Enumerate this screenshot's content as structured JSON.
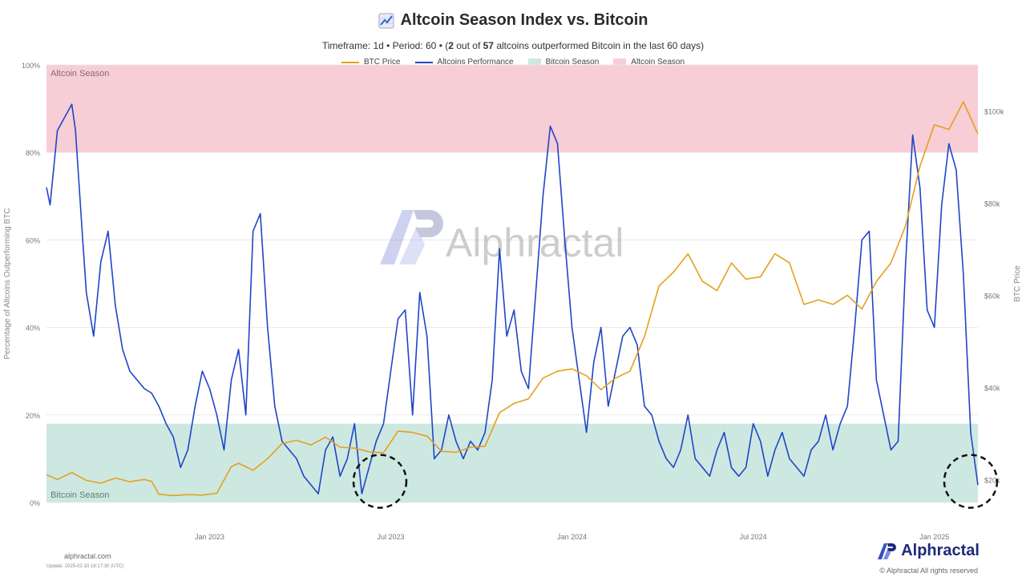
{
  "chart_data": {
    "type": "line",
    "title": "Altcoin Season Index vs. Bitcoin",
    "subtitle": {
      "prefix": "Timeframe: 1d  •  Period: 60  •  (",
      "count": "2",
      "middle": " out of ",
      "total": "57",
      "suffix": " altcoins outperformed Bitcoin in the last 60 days)"
    },
    "legend": {
      "btc_price": "BTC Price",
      "altcoins_performance": "Altcoins Performance",
      "bitcoin_season": "Bitcoin Season",
      "altcoin_season": "Altcoin Season"
    },
    "ylabel_left": "Percentage of Altcoins Outperforming BTC",
    "ylabel_right": "BTC Price",
    "left_ticks": [
      "0%",
      "20%",
      "40%",
      "60%",
      "80%",
      "100%"
    ],
    "left_tick_values": [
      0,
      20,
      40,
      60,
      80,
      100
    ],
    "right_ticks": [
      "$20k",
      "$40k",
      "$60k",
      "$80k",
      "$100k"
    ],
    "right_tick_values": [
      20000,
      40000,
      60000,
      80000,
      100000
    ],
    "ylim_left": [
      0,
      100
    ],
    "ylim_right": [
      15000,
      110000
    ],
    "x_ticks": [
      "Jan 2023",
      "Jul 2023",
      "Jan 2024",
      "Jul 2024",
      "Jan 2025"
    ],
    "x_tick_values": [
      2023.0,
      2023.5,
      2024.0,
      2024.5,
      2025.0
    ],
    "xlim": [
      2022.55,
      2025.12
    ],
    "bands": [
      {
        "name": "Altcoin Season",
        "from": 80,
        "to": 100,
        "color": "#f7cdd6"
      },
      {
        "name": "Bitcoin Season",
        "from": 0,
        "to": 18,
        "color": "#cde8e1"
      }
    ],
    "band_labels": {
      "top": "Altcoin Season",
      "bottom": "Bitcoin Season"
    },
    "series": [
      {
        "name": "Altcoins Performance",
        "axis": "left",
        "color": "#1f45c8",
        "x": [
          2022.55,
          2022.56,
          2022.58,
          2022.6,
          2022.62,
          2022.63,
          2022.65,
          2022.66,
          2022.68,
          2022.7,
          2022.72,
          2022.74,
          2022.76,
          2022.78,
          2022.8,
          2022.82,
          2022.84,
          2022.86,
          2022.88,
          2022.9,
          2022.92,
          2022.94,
          2022.96,
          2022.98,
          2023.0,
          2023.02,
          2023.04,
          2023.06,
          2023.08,
          2023.1,
          2023.12,
          2023.14,
          2023.16,
          2023.18,
          2023.2,
          2023.22,
          2023.24,
          2023.26,
          2023.28,
          2023.3,
          2023.32,
          2023.34,
          2023.36,
          2023.38,
          2023.4,
          2023.42,
          2023.44,
          2023.46,
          2023.48,
          2023.5,
          2023.52,
          2023.54,
          2023.56,
          2023.58,
          2023.6,
          2023.62,
          2023.64,
          2023.66,
          2023.68,
          2023.7,
          2023.72,
          2023.74,
          2023.76,
          2023.78,
          2023.8,
          2023.82,
          2023.84,
          2023.86,
          2023.88,
          2023.9,
          2023.92,
          2023.94,
          2023.96,
          2023.98,
          2024.0,
          2024.02,
          2024.04,
          2024.06,
          2024.08,
          2024.1,
          2024.12,
          2024.14,
          2024.16,
          2024.18,
          2024.2,
          2024.22,
          2024.24,
          2024.26,
          2024.28,
          2024.3,
          2024.32,
          2024.34,
          2024.36,
          2024.38,
          2024.4,
          2024.42,
          2024.44,
          2024.46,
          2024.48,
          2024.5,
          2024.52,
          2024.54,
          2024.56,
          2024.58,
          2024.6,
          2024.62,
          2024.64,
          2024.66,
          2024.68,
          2024.7,
          2024.72,
          2024.74,
          2024.76,
          2024.78,
          2024.8,
          2024.82,
          2024.84,
          2024.86,
          2024.88,
          2024.9,
          2024.92,
          2024.94,
          2024.96,
          2024.98,
          2025.0,
          2025.02,
          2025.04,
          2025.06,
          2025.08,
          2025.1,
          2025.12
        ],
        "values": [
          72,
          68,
          85,
          88,
          91,
          85,
          60,
          48,
          38,
          55,
          62,
          45,
          35,
          30,
          28,
          26,
          25,
          22,
          18,
          15,
          8,
          12,
          22,
          30,
          26,
          20,
          12,
          28,
          35,
          20,
          62,
          66,
          40,
          22,
          14,
          12,
          10,
          6,
          4,
          2,
          12,
          15,
          6,
          10,
          18,
          2,
          8,
          14,
          18,
          30,
          42,
          44,
          20,
          48,
          38,
          10,
          12,
          20,
          14,
          10,
          14,
          12,
          16,
          28,
          58,
          38,
          44,
          30,
          26,
          48,
          70,
          86,
          82,
          60,
          40,
          28,
          16,
          32,
          40,
          22,
          30,
          38,
          40,
          36,
          22,
          20,
          14,
          10,
          8,
          12,
          20,
          10,
          8,
          6,
          12,
          16,
          8,
          6,
          8,
          18,
          14,
          6,
          12,
          16,
          10,
          8,
          6,
          12,
          14,
          20,
          12,
          18,
          22,
          40,
          60,
          62,
          28,
          20,
          12,
          14,
          54,
          84,
          72,
          44,
          40,
          68,
          82,
          76,
          52,
          16,
          4
        ]
      },
      {
        "name": "BTC Price",
        "axis": "right",
        "color": "#e5a01d",
        "x": [
          2022.55,
          2022.58,
          2022.62,
          2022.66,
          2022.7,
          2022.74,
          2022.78,
          2022.82,
          2022.84,
          2022.86,
          2022.9,
          2022.94,
          2022.98,
          2023.02,
          2023.06,
          2023.08,
          2023.12,
          2023.16,
          2023.2,
          2023.24,
          2023.28,
          2023.32,
          2023.36,
          2023.4,
          2023.44,
          2023.48,
          2023.52,
          2023.56,
          2023.6,
          2023.64,
          2023.68,
          2023.72,
          2023.76,
          2023.8,
          2023.84,
          2023.88,
          2023.92,
          2023.96,
          2024.0,
          2024.04,
          2024.08,
          2024.12,
          2024.16,
          2024.2,
          2024.24,
          2024.28,
          2024.32,
          2024.36,
          2024.4,
          2024.44,
          2024.48,
          2024.52,
          2024.56,
          2024.6,
          2024.64,
          2024.68,
          2024.72,
          2024.76,
          2024.8,
          2024.84,
          2024.88,
          2024.92,
          2024.96,
          2025.0,
          2025.04,
          2025.08,
          2025.12
        ],
        "values": [
          21000,
          20000,
          21500,
          19800,
          19200,
          20300,
          19500,
          20000,
          19600,
          16800,
          16500,
          16700,
          16600,
          17000,
          22800,
          23500,
          22000,
          24500,
          27800,
          28500,
          27500,
          29200,
          27000,
          26800,
          26000,
          25800,
          30500,
          30200,
          29400,
          26100,
          25900,
          27000,
          27200,
          34500,
          36500,
          37500,
          42000,
          43500,
          44000,
          42500,
          39500,
          42000,
          43500,
          51000,
          62000,
          65000,
          69000,
          63000,
          61000,
          67000,
          63500,
          64000,
          69000,
          67000,
          58000,
          59000,
          58000,
          60000,
          57000,
          63000,
          67000,
          75000,
          88000,
          97000,
          96000,
          102000,
          95000
        ]
      }
    ],
    "watermark": "Alphractal",
    "footer": {
      "site": "alphractal.com",
      "update": "Update: 2025-02-10 18:17:30 (UTC)",
      "brand": "Alphractal",
      "copyright": "© Alphractal All rights reserved"
    },
    "annotations": [
      {
        "type": "dashed-circle",
        "x": 2023.47,
        "y": 3
      },
      {
        "type": "dashed-circle",
        "x": 2025.1,
        "y": 3
      }
    ]
  }
}
